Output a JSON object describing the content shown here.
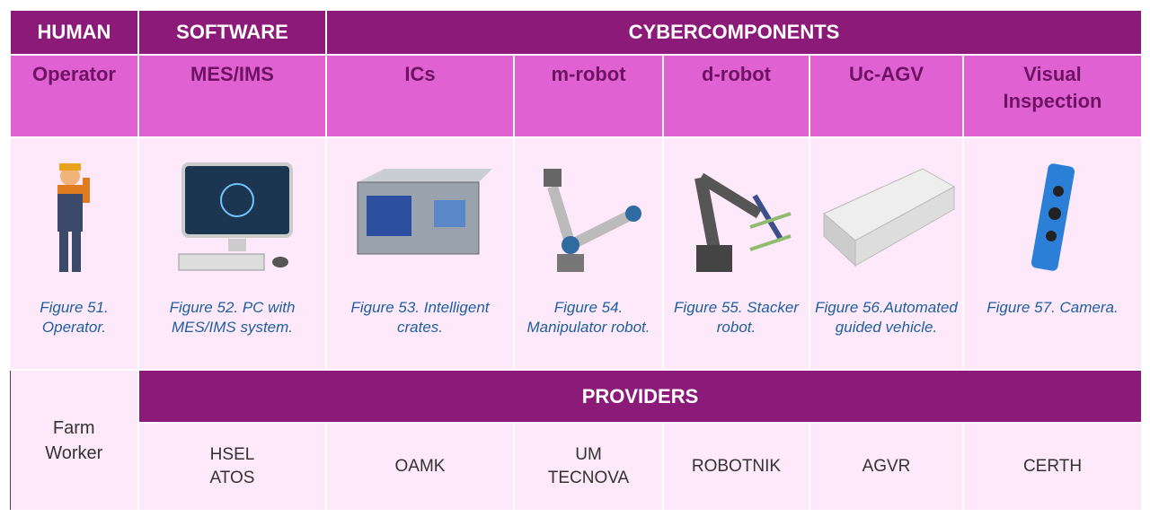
{
  "table": {
    "header": [
      "HUMAN",
      "SOFTWARE",
      "CYBERCOMPONENTS"
    ],
    "columns": [
      "Operator",
      "MES/IMS",
      "ICs",
      "m-robot",
      "d-robot",
      "Uc-AGV",
      "Visual\nInspection"
    ],
    "captions": [
      "Figure 51. Operator.",
      "Figure 52. PC with MES/IMS  system.",
      "Figure 53. Intelligent crates.",
      "Figure 54. Manipulator robot.",
      "Figure 55. Stacker robot.",
      "Figure 56.Automated guided vehicle.",
      "Figure 57. Camera."
    ],
    "providers_label": "PROVIDERS",
    "human_provider": "Farm\nWorker",
    "providers": [
      "HSEL\nATOS",
      "OAMK",
      "UM\nTECNOVA",
      "ROBOTNIK",
      "AGVR",
      "CERTH"
    ]
  }
}
